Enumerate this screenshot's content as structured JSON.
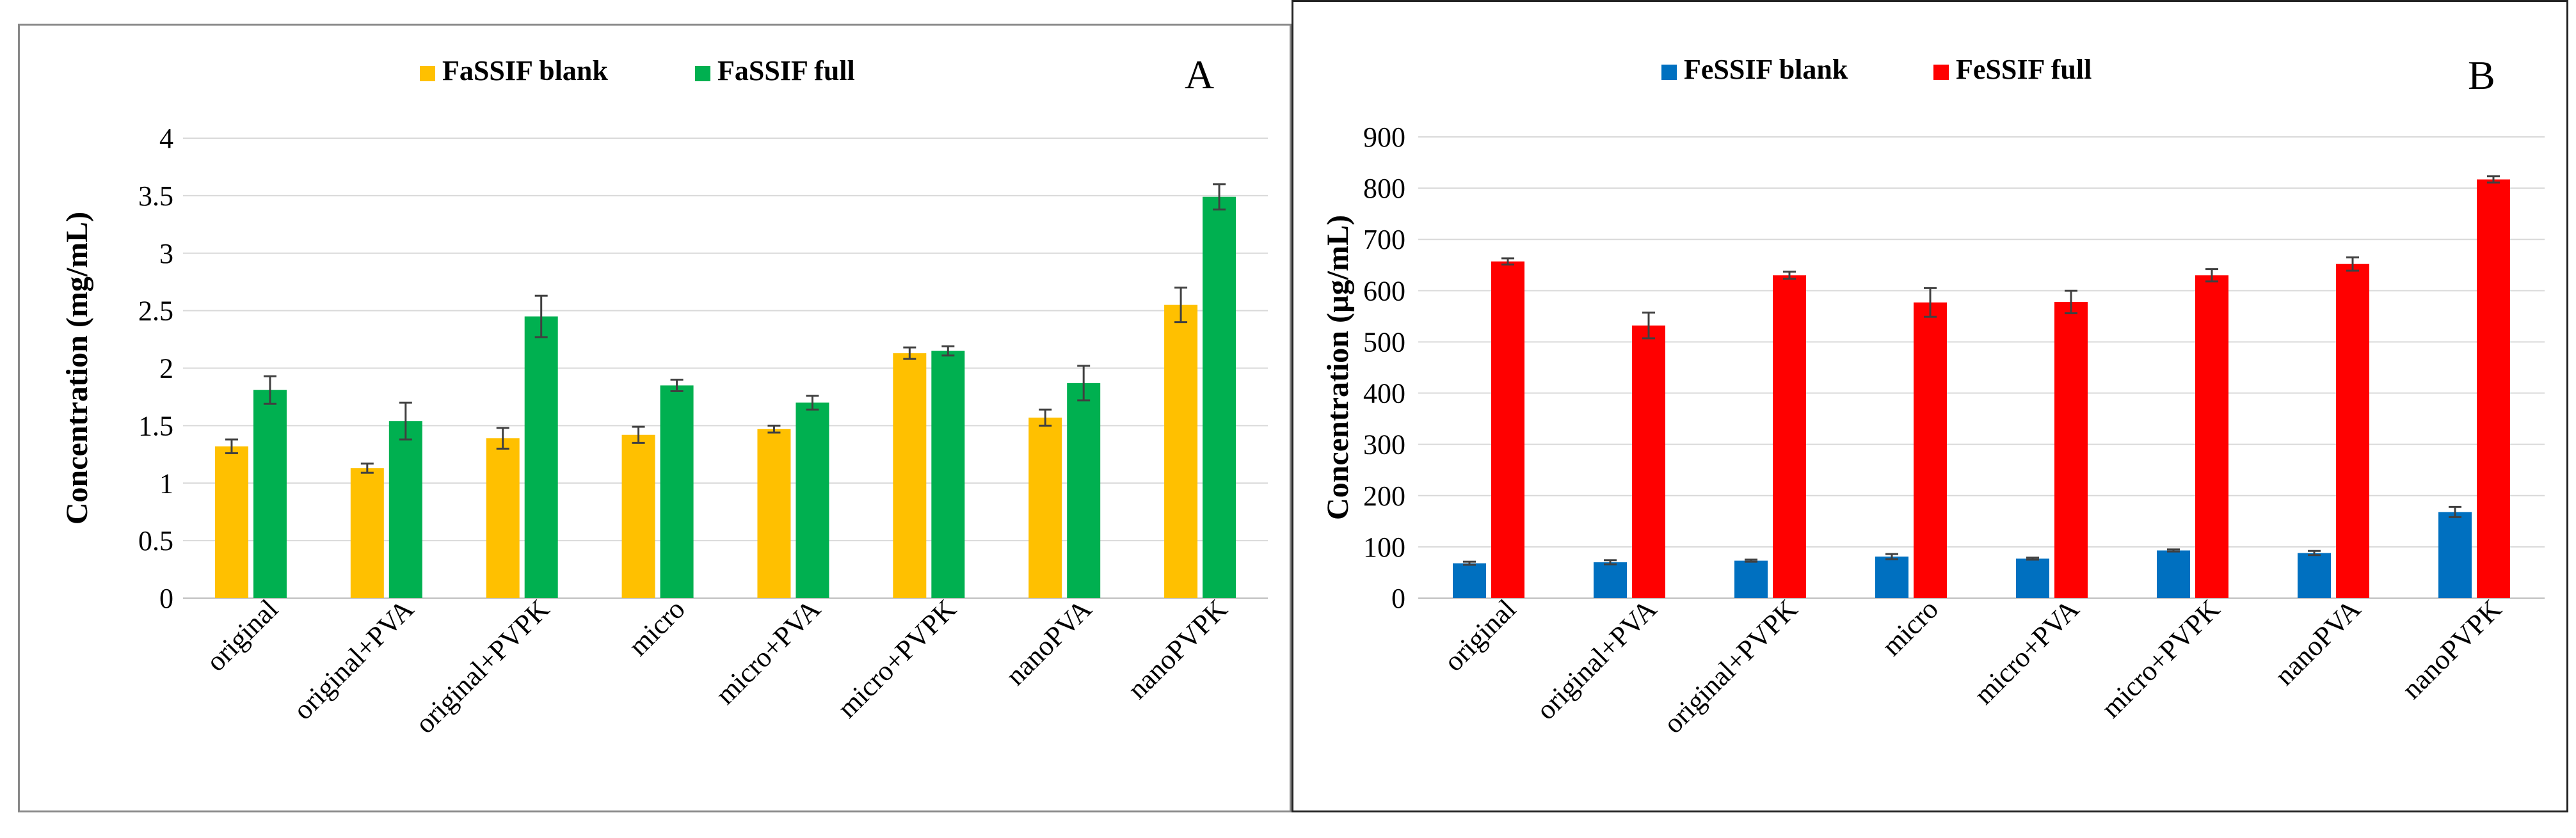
{
  "chart_data": [
    {
      "type": "bar",
      "panel_label": "A",
      "title": "",
      "xlabel": "",
      "ylabel": "Concentration (mg/mL)",
      "ylim": [
        0,
        4
      ],
      "yticks": [
        0,
        0.5,
        1,
        1.5,
        2,
        2.5,
        3,
        3.5,
        4
      ],
      "ytick_labels": [
        "0",
        "0.5",
        "1",
        "1.5",
        "2",
        "2.5",
        "3",
        "3.5",
        "4"
      ],
      "grid": true,
      "legend_position": "top-center",
      "categories": [
        "original",
        "original+PVA",
        "original+PVPK",
        "micro",
        "micro+PVA",
        "micro+PVPK",
        "nanoPVA",
        "nanoPVPK"
      ],
      "series": [
        {
          "name": "FaSSIF blank",
          "color": "#FFC000",
          "values": [
            1.32,
            1.13,
            1.39,
            1.42,
            1.47,
            2.13,
            1.57,
            2.55
          ],
          "errors": [
            0.06,
            0.04,
            0.09,
            0.07,
            0.03,
            0.05,
            0.07,
            0.15
          ]
        },
        {
          "name": "FaSSIF full",
          "color": "#00B050",
          "values": [
            1.81,
            1.54,
            2.45,
            1.85,
            1.7,
            2.15,
            1.87,
            3.49
          ],
          "errors": [
            0.12,
            0.16,
            0.18,
            0.05,
            0.06,
            0.04,
            0.15,
            0.11
          ]
        }
      ]
    },
    {
      "type": "bar",
      "panel_label": "B",
      "title": "",
      "xlabel": "",
      "ylabel": "Concentration (µg/mL)",
      "ylim": [
        0,
        900
      ],
      "yticks": [
        0,
        100,
        200,
        300,
        400,
        500,
        600,
        700,
        800,
        900
      ],
      "ytick_labels": [
        "0",
        "100",
        "200",
        "300",
        "400",
        "500",
        "600",
        "700",
        "800",
        "900"
      ],
      "grid": true,
      "legend_position": "top-center",
      "categories": [
        "original",
        "original+PVA",
        "original+PVPK",
        "micro",
        "micro+PVA",
        "micro+PVPK",
        "nanoPVA",
        "nanoPVPK"
      ],
      "series": [
        {
          "name": "FeSSIF blank",
          "color": "#0070C0",
          "values": [
            68,
            70,
            73,
            81,
            77,
            93,
            88,
            168
          ],
          "errors": [
            3,
            4,
            2,
            5,
            2,
            2,
            4,
            10
          ]
        },
        {
          "name": "FeSSIF full",
          "color": "#FF0000",
          "values": [
            657,
            532,
            630,
            577,
            578,
            630,
            652,
            817
          ],
          "errors": [
            6,
            25,
            7,
            28,
            22,
            12,
            13,
            6
          ]
        }
      ]
    }
  ]
}
